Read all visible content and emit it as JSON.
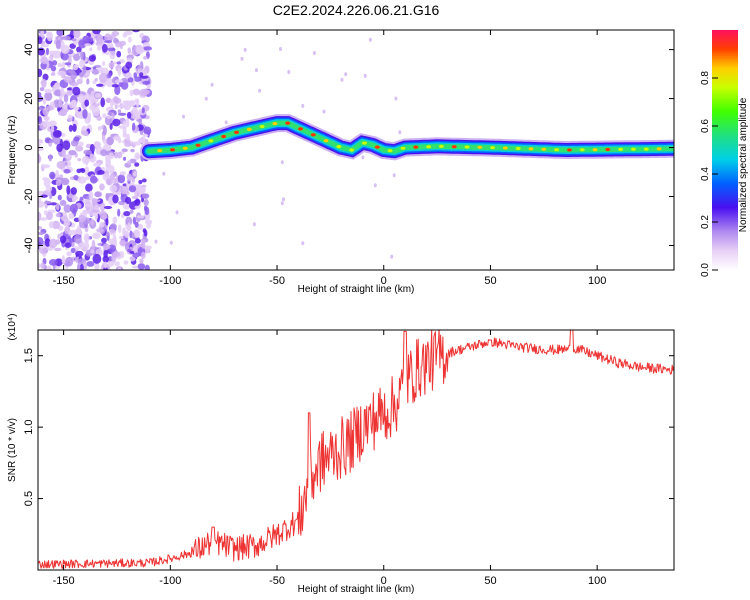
{
  "figure": {
    "title": "C2E2.2024.226.06.21.G16"
  },
  "chart_data": [
    {
      "type": "heatmap",
      "xlabel": "Height of straight line (km)",
      "ylabel": "Frequency (Hz)",
      "xlim": [
        -162,
        136
      ],
      "ylim": [
        -50,
        48
      ],
      "xticks": [
        -150,
        -100,
        -50,
        0,
        50,
        100
      ],
      "yticks": [
        -40,
        -20,
        0,
        20,
        40
      ],
      "noise_region": [
        -162,
        -110
      ],
      "ridge": [
        [
          -110,
          -1.5
        ],
        [
          -100,
          -1
        ],
        [
          -90,
          0
        ],
        [
          -80,
          3
        ],
        [
          -70,
          6
        ],
        [
          -60,
          8
        ],
        [
          -50,
          10
        ],
        [
          -45,
          10
        ],
        [
          -40,
          8
        ],
        [
          -35,
          6
        ],
        [
          -30,
          4
        ],
        [
          -25,
          2
        ],
        [
          -20,
          0
        ],
        [
          -15,
          -1
        ],
        [
          -10,
          2
        ],
        [
          -5,
          1
        ],
        [
          0,
          -1
        ],
        [
          5,
          -1.5
        ],
        [
          10,
          0
        ],
        [
          25,
          0.5
        ],
        [
          50,
          0
        ],
        [
          85,
          -1
        ],
        [
          136,
          -0.5
        ]
      ],
      "colorbar": {
        "label": "Normalized spectral amplitude",
        "ticks": [
          "0.0",
          "0.2",
          "0.4",
          "0.6",
          "0.8"
        ],
        "range": [
          0,
          1
        ]
      }
    },
    {
      "type": "line",
      "xlabel": "Height of straight line (km)",
      "ylabel": "SNR (10 * v/v)",
      "yscale_label": "(x10⁴)",
      "xlim": [
        -162,
        136
      ],
      "ylim": [
        0,
        1.68
      ],
      "xticks": [
        -150,
        -100,
        -50,
        0,
        50,
        100
      ],
      "yticks": [
        "0.5",
        "1.0",
        "1.5"
      ],
      "series_color": "#ee3333",
      "trend": [
        [
          -162,
          0.04
        ],
        [
          -110,
          0.05
        ],
        [
          -100,
          0.08
        ],
        [
          -90,
          0.12
        ],
        [
          -80,
          0.2
        ],
        [
          -70,
          0.15
        ],
        [
          -60,
          0.17
        ],
        [
          -50,
          0.25
        ],
        [
          -40,
          0.35
        ],
        [
          -35,
          0.6
        ],
        [
          -30,
          0.75
        ],
        [
          -25,
          0.8
        ],
        [
          -20,
          0.85
        ],
        [
          -15,
          0.9
        ],
        [
          -10,
          1.0
        ],
        [
          -5,
          1.05
        ],
        [
          0,
          1.1
        ],
        [
          5,
          1.15
        ],
        [
          10,
          1.3
        ],
        [
          15,
          1.4
        ],
        [
          20,
          1.45
        ],
        [
          30,
          1.52
        ],
        [
          40,
          1.56
        ],
        [
          50,
          1.6
        ],
        [
          60,
          1.57
        ],
        [
          70,
          1.55
        ],
        [
          80,
          1.54
        ],
        [
          90,
          1.55
        ],
        [
          100,
          1.5
        ],
        [
          110,
          1.45
        ],
        [
          120,
          1.42
        ],
        [
          136,
          1.4
        ]
      ],
      "peaks": [
        [
          -80,
          0.3
        ],
        [
          -35,
          1.1
        ],
        [
          10,
          1.67
        ],
        [
          50,
          1.61
        ],
        [
          88,
          1.7
        ]
      ]
    }
  ]
}
